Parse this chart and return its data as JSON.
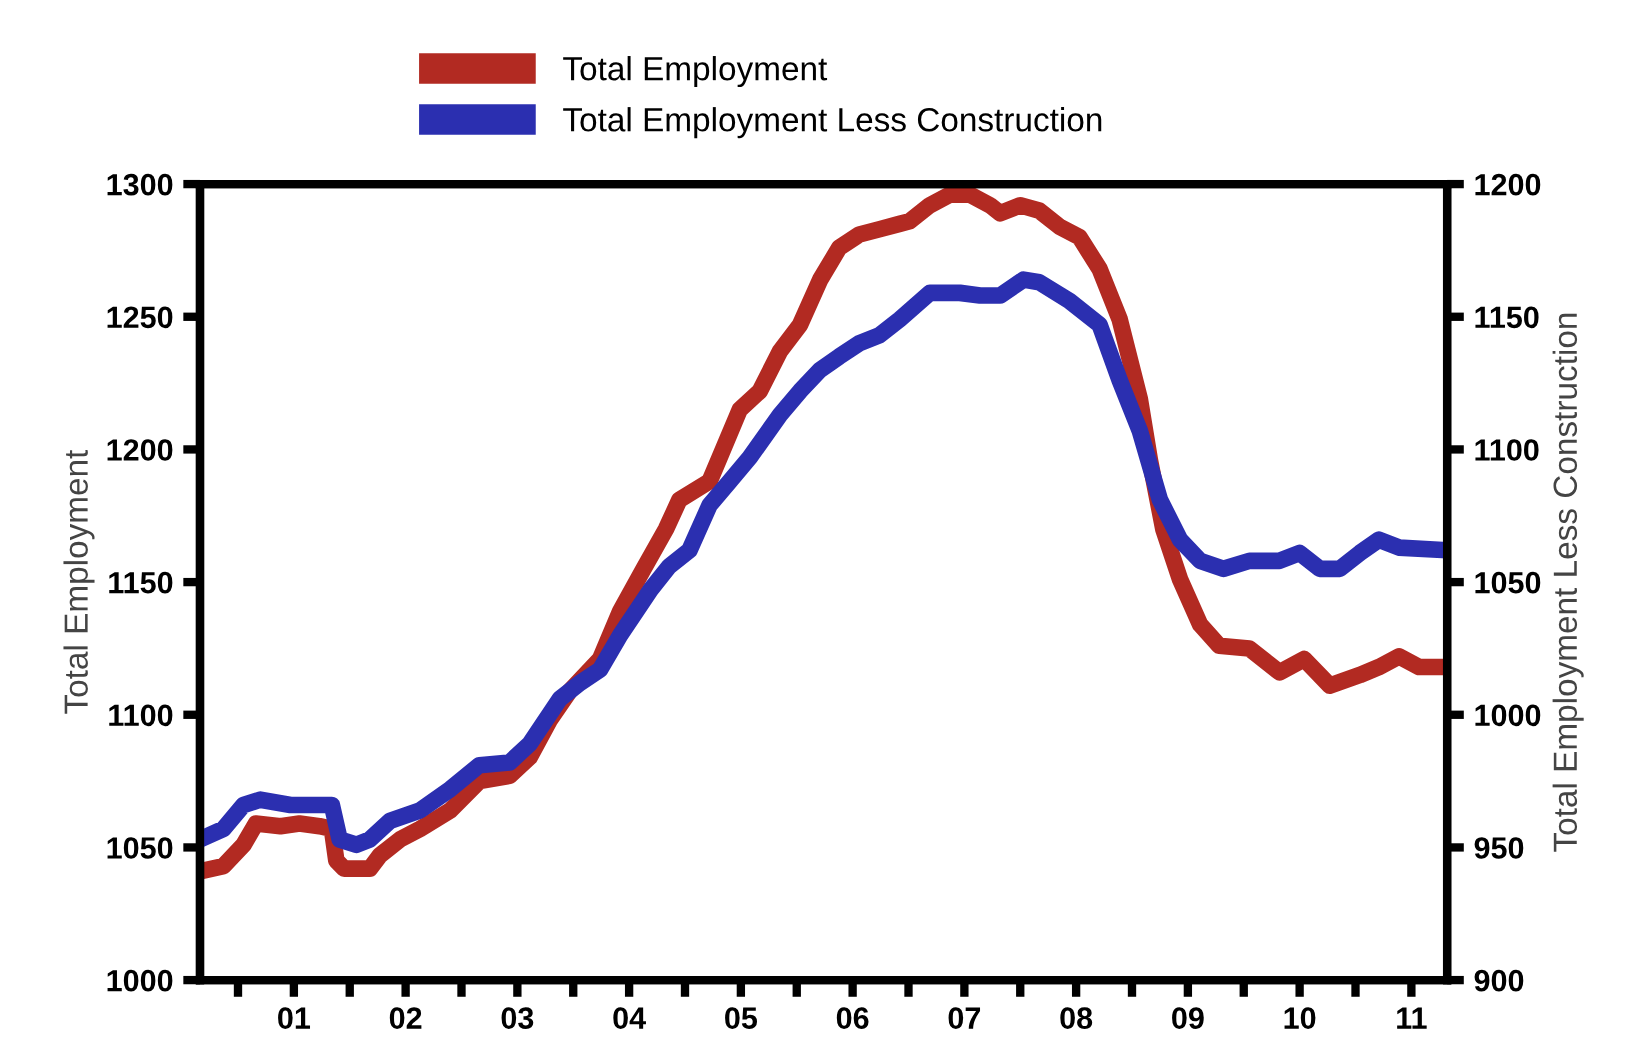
{
  "chart_data": {
    "type": "line",
    "ylabel": "Total Employment",
    "y2label": "Total Employment Less Construction",
    "legend": "top",
    "grid": false,
    "marker": "none",
    "line_style": "solid",
    "xlim": [
      0.16,
      11.32
    ],
    "xticks": [
      {
        "value": 0.5,
        "label": null
      },
      {
        "value": 1,
        "label": "01"
      },
      {
        "value": 1.5,
        "label": null
      },
      {
        "value": 2,
        "label": "02"
      },
      {
        "value": 2.5,
        "label": null
      },
      {
        "value": 3,
        "label": "03"
      },
      {
        "value": 3.5,
        "label": null
      },
      {
        "value": 4,
        "label": "04"
      },
      {
        "value": 4.5,
        "label": null
      },
      {
        "value": 5,
        "label": "05"
      },
      {
        "value": 5.5,
        "label": null
      },
      {
        "value": 6,
        "label": "06"
      },
      {
        "value": 6.5,
        "label": null
      },
      {
        "value": 7,
        "label": "07"
      },
      {
        "value": 7.5,
        "label": null
      },
      {
        "value": 8,
        "label": "08"
      },
      {
        "value": 8.5,
        "label": null
      },
      {
        "value": 9,
        "label": "09"
      },
      {
        "value": 9.5,
        "label": null
      },
      {
        "value": 10,
        "label": "10"
      },
      {
        "value": 10.5,
        "label": null
      },
      {
        "value": 11,
        "label": "11"
      }
    ],
    "ylim": [
      1000,
      1300
    ],
    "yticks": [
      1000,
      1050,
      1100,
      1150,
      1200,
      1250,
      1300
    ],
    "y2lim": [
      900,
      1200
    ],
    "y2ticks": [
      900,
      950,
      1000,
      1050,
      1100,
      1150,
      1200
    ],
    "series": [
      {
        "name": "Total Employment",
        "color": "#b22a22",
        "x": [
          0.16,
          0.37,
          0.55,
          0.66,
          0.88,
          1.05,
          1.23,
          1.34,
          1.38,
          1.45,
          1.68,
          1.77,
          1.95,
          2.13,
          2.4,
          2.66,
          2.93,
          3.11,
          3.29,
          3.47,
          3.74,
          3.92,
          4.13,
          4.33,
          4.45,
          4.72,
          4.81,
          4.99,
          5.17,
          5.35,
          5.53,
          5.71,
          5.88,
          6.06,
          6.24,
          6.42,
          6.51,
          6.69,
          6.87,
          7.05,
          7.23,
          7.32,
          7.5,
          7.67,
          7.85,
          8.03,
          8.21,
          8.39,
          8.57,
          8.66,
          8.78,
          8.93,
          9.11,
          9.28,
          9.55,
          9.82,
          10.04,
          10.27,
          10.54,
          10.71,
          10.89,
          11.07,
          11.32
        ],
        "values": [
          1041,
          1043,
          1051,
          1059,
          1058,
          1059,
          1058,
          1057,
          1045,
          1042,
          1042,
          1047,
          1053,
          1057,
          1064,
          1075,
          1077,
          1084,
          1098,
          1109,
          1121,
          1139,
          1155,
          1170,
          1181,
          1188,
          1197,
          1215,
          1222,
          1237,
          1247,
          1264,
          1276,
          1281,
          1283,
          1285,
          1286,
          1292,
          1296,
          1296,
          1292,
          1289,
          1292,
          1290,
          1284,
          1280,
          1268,
          1249,
          1219,
          1196,
          1170,
          1151,
          1134,
          1126,
          1125,
          1116,
          1121,
          1111,
          1115,
          1118,
          1122,
          1118,
          1118
        ]
      },
      {
        "name": "Total Employment Less Construction",
        "color": "#2b2fb0",
        "axis": "y2",
        "x": [
          0.16,
          0.37,
          0.55,
          0.7,
          0.97,
          1.23,
          1.34,
          1.41,
          1.56,
          1.68,
          1.86,
          2.13,
          2.4,
          2.66,
          2.93,
          3.11,
          3.38,
          3.56,
          3.74,
          3.92,
          4.19,
          4.36,
          4.54,
          4.72,
          4.9,
          5.08,
          5.35,
          5.53,
          5.71,
          5.88,
          6.06,
          6.24,
          6.42,
          6.69,
          6.96,
          7.14,
          7.32,
          7.53,
          7.67,
          7.94,
          8.21,
          8.39,
          8.57,
          8.75,
          8.93,
          9.11,
          9.32,
          9.55,
          9.82,
          10.0,
          10.18,
          10.36,
          10.54,
          10.71,
          10.89,
          11.32
        ],
        "values": [
          953,
          957,
          966,
          968,
          966,
          966,
          966,
          953,
          951,
          953,
          960,
          964,
          972,
          981,
          982,
          989,
          1006,
          1012,
          1017,
          1030,
          1047,
          1056,
          1062,
          1079,
          1088,
          1097,
          1113,
          1122,
          1130,
          1135,
          1140,
          1143,
          1149,
          1159,
          1159,
          1158,
          1158,
          1164,
          1163,
          1156,
          1147,
          1126,
          1107,
          1081,
          1066,
          1058,
          1055,
          1058,
          1058,
          1061,
          1055,
          1055,
          1061,
          1066,
          1063,
          1062
        ]
      }
    ]
  }
}
